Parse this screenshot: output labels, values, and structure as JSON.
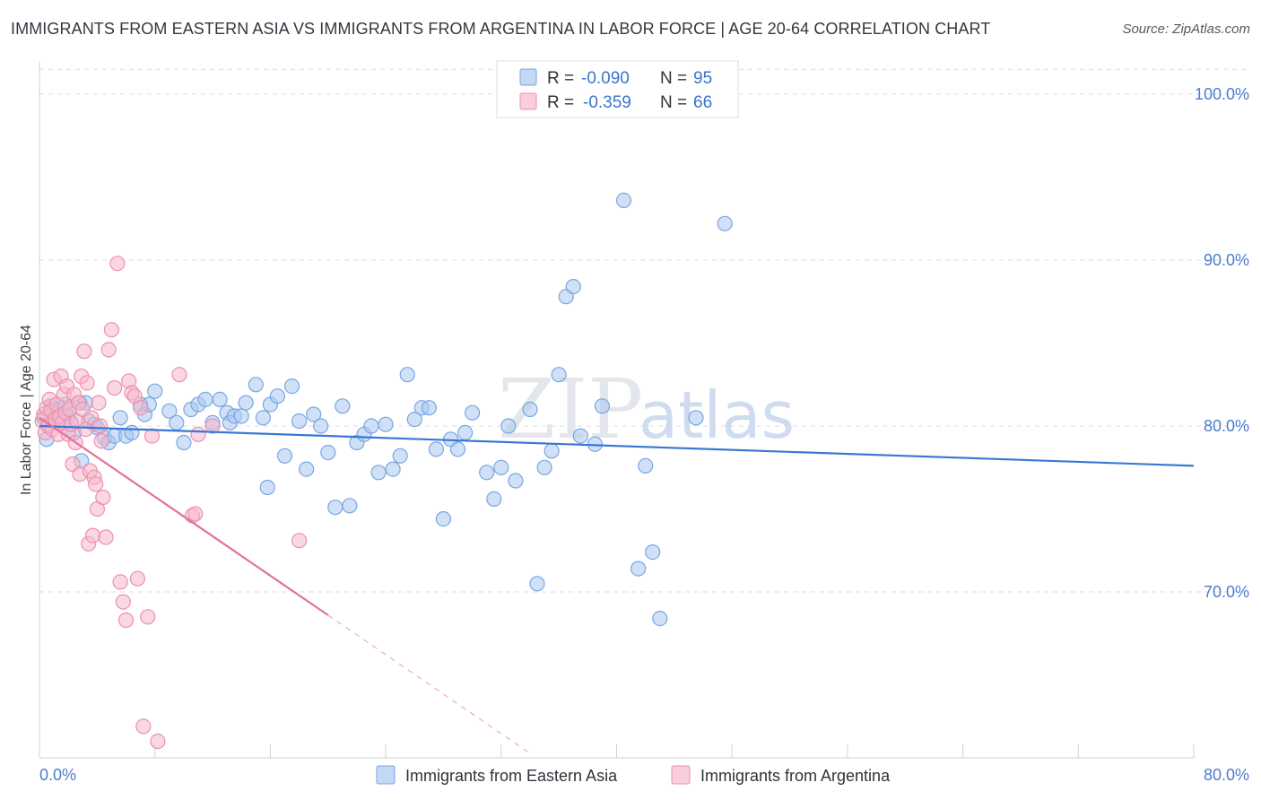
{
  "title": "IMMIGRANTS FROM EASTERN ASIA VS IMMIGRANTS FROM ARGENTINA IN LABOR FORCE | AGE 20-64 CORRELATION CHART",
  "source": "Source: ZipAtlas.com",
  "watermark": {
    "zip": "ZIP",
    "atlas": "atlas"
  },
  "colors": {
    "blue": "#a9c8f0",
    "blue_stroke": "#7aa6e0",
    "blue_line": "#3a78d4",
    "pink": "#f6b8cc",
    "pink_stroke": "#ee8fae",
    "pink_line": "#e3709b",
    "grid": "#d9dde2",
    "axis_text": "#4a7cd0"
  },
  "legend": {
    "rows": [
      {
        "r_label": "R =",
        "r_value": "-0.090",
        "n_label": "N =",
        "n_value": "95"
      },
      {
        "r_label": "R =",
        "r_value": "-0.359",
        "n_label": "N =",
        "n_value": "66"
      }
    ]
  },
  "chart_data": {
    "type": "scatter",
    "ylabel": "In Labor Force | Age 20-64",
    "xlabel": "",
    "xlim": [
      0,
      80
    ],
    "ylim": [
      60,
      102
    ],
    "x_tick_labels": [
      "0.0%",
      "80.0%"
    ],
    "y_ticks": [
      70,
      80,
      90,
      100
    ],
    "y_tick_labels": [
      "70.0%",
      "80.0%",
      "90.0%",
      "100.0%"
    ],
    "series": [
      {
        "name": "Immigrants from Eastern Asia",
        "r": -0.09,
        "n": 95,
        "trend": {
          "x": [
            0,
            80
          ],
          "y": [
            80.0,
            77.6
          ],
          "dash_from": 80
        },
        "points": [
          [
            0.3,
            80.5
          ],
          [
            0.5,
            79.2
          ],
          [
            0.6,
            80.1
          ],
          [
            0.8,
            81.2
          ],
          [
            1.0,
            80.9
          ],
          [
            1.2,
            81.0
          ],
          [
            1.4,
            80.4
          ],
          [
            1.6,
            80.7
          ],
          [
            1.8,
            81.3
          ],
          [
            2.0,
            80.6
          ],
          [
            2.2,
            80.2
          ],
          [
            2.4,
            79.6
          ],
          [
            2.8,
            81.4
          ],
          [
            2.9,
            77.9
          ],
          [
            3.2,
            81.4
          ],
          [
            3.4,
            80.3
          ],
          [
            3.8,
            80.1
          ],
          [
            4.0,
            79.9
          ],
          [
            4.5,
            79.3
          ],
          [
            4.8,
            79.0
          ],
          [
            5.2,
            79.4
          ],
          [
            5.6,
            80.5
          ],
          [
            6.0,
            79.4
          ],
          [
            6.4,
            79.6
          ],
          [
            7.0,
            81.3
          ],
          [
            7.3,
            80.7
          ],
          [
            7.6,
            81.3
          ],
          [
            8.0,
            82.1
          ],
          [
            9.0,
            80.9
          ],
          [
            9.5,
            80.2
          ],
          [
            10.0,
            79.0
          ],
          [
            10.5,
            81.0
          ],
          [
            11.0,
            81.3
          ],
          [
            11.5,
            81.6
          ],
          [
            12.0,
            80.2
          ],
          [
            12.5,
            81.6
          ],
          [
            13.0,
            80.8
          ],
          [
            13.2,
            80.2
          ],
          [
            13.5,
            80.6
          ],
          [
            14.0,
            80.6
          ],
          [
            14.3,
            81.4
          ],
          [
            15.0,
            82.5
          ],
          [
            15.5,
            80.5
          ],
          [
            15.8,
            76.3
          ],
          [
            16.0,
            81.3
          ],
          [
            16.5,
            81.8
          ],
          [
            17.0,
            78.2
          ],
          [
            17.5,
            82.4
          ],
          [
            18.0,
            80.3
          ],
          [
            18.5,
            77.4
          ],
          [
            19.0,
            80.7
          ],
          [
            19.5,
            80.0
          ],
          [
            20.0,
            78.4
          ],
          [
            20.5,
            75.1
          ],
          [
            21.0,
            81.2
          ],
          [
            21.5,
            75.2
          ],
          [
            22.0,
            79.0
          ],
          [
            22.5,
            79.5
          ],
          [
            23.0,
            80.0
          ],
          [
            23.5,
            77.2
          ],
          [
            24.0,
            80.1
          ],
          [
            24.5,
            77.4
          ],
          [
            25.0,
            78.2
          ],
          [
            25.5,
            83.1
          ],
          [
            26.0,
            80.4
          ],
          [
            26.5,
            81.1
          ],
          [
            27.0,
            81.1
          ],
          [
            27.5,
            78.6
          ],
          [
            28.0,
            74.4
          ],
          [
            28.5,
            79.2
          ],
          [
            29.0,
            78.6
          ],
          [
            29.5,
            79.6
          ],
          [
            30.0,
            80.8
          ],
          [
            31.0,
            77.2
          ],
          [
            31.5,
            75.6
          ],
          [
            32.0,
            77.5
          ],
          [
            32.5,
            80.0
          ],
          [
            33.0,
            76.7
          ],
          [
            34.0,
            81.0
          ],
          [
            34.5,
            70.5
          ],
          [
            35.0,
            77.5
          ],
          [
            35.5,
            78.5
          ],
          [
            36.0,
            83.1
          ],
          [
            36.5,
            87.8
          ],
          [
            37.0,
            88.4
          ],
          [
            37.5,
            79.4
          ],
          [
            38.5,
            78.9
          ],
          [
            39.0,
            81.2
          ],
          [
            40.5,
            93.6
          ],
          [
            41.5,
            71.4
          ],
          [
            42.0,
            77.6
          ],
          [
            42.5,
            72.4
          ],
          [
            43.0,
            68.4
          ],
          [
            45.5,
            80.5
          ],
          [
            47.5,
            92.2
          ]
        ]
      },
      {
        "name": "Immigrants from Argentina",
        "r": -0.359,
        "n": 66,
        "trend": {
          "x": [
            0,
            20
          ],
          "y": [
            80.5,
            68.6
          ],
          "dash_to": 34
        },
        "points": [
          [
            0.2,
            80.3
          ],
          [
            0.3,
            80.7
          ],
          [
            0.4,
            79.6
          ],
          [
            0.5,
            81.1
          ],
          [
            0.6,
            80.0
          ],
          [
            0.7,
            81.6
          ],
          [
            0.8,
            80.9
          ],
          [
            0.9,
            79.8
          ],
          [
            1.0,
            82.8
          ],
          [
            1.1,
            80.4
          ],
          [
            1.2,
            81.3
          ],
          [
            1.3,
            79.5
          ],
          [
            1.4,
            80.6
          ],
          [
            1.5,
            83.0
          ],
          [
            1.6,
            80.2
          ],
          [
            1.7,
            81.9
          ],
          [
            1.8,
            80.8
          ],
          [
            1.9,
            82.4
          ],
          [
            2.0,
            79.5
          ],
          [
            2.1,
            81.0
          ],
          [
            2.2,
            80.1
          ],
          [
            2.3,
            77.7
          ],
          [
            2.4,
            81.9
          ],
          [
            2.5,
            79.0
          ],
          [
            2.6,
            80.3
          ],
          [
            2.7,
            81.4
          ],
          [
            2.8,
            77.1
          ],
          [
            2.9,
            83.0
          ],
          [
            3.0,
            81.0
          ],
          [
            3.1,
            84.5
          ],
          [
            3.2,
            79.8
          ],
          [
            3.3,
            82.6
          ],
          [
            3.4,
            72.9
          ],
          [
            3.5,
            77.3
          ],
          [
            3.6,
            80.5
          ],
          [
            3.7,
            73.4
          ],
          [
            3.8,
            76.9
          ],
          [
            3.9,
            76.5
          ],
          [
            4.0,
            75.0
          ],
          [
            4.1,
            81.4
          ],
          [
            4.2,
            80.0
          ],
          [
            4.3,
            79.1
          ],
          [
            4.4,
            75.7
          ],
          [
            4.6,
            73.3
          ],
          [
            4.8,
            84.6
          ],
          [
            5.0,
            85.8
          ],
          [
            5.2,
            82.3
          ],
          [
            5.4,
            89.8
          ],
          [
            5.6,
            70.6
          ],
          [
            5.8,
            69.4
          ],
          [
            6.0,
            68.3
          ],
          [
            6.2,
            82.7
          ],
          [
            6.4,
            82.0
          ],
          [
            6.6,
            81.8
          ],
          [
            6.8,
            70.8
          ],
          [
            7.0,
            81.1
          ],
          [
            7.2,
            61.9
          ],
          [
            7.5,
            68.5
          ],
          [
            7.8,
            79.4
          ],
          [
            8.2,
            61.0
          ],
          [
            9.7,
            83.1
          ],
          [
            10.6,
            74.6
          ],
          [
            10.8,
            74.7
          ],
          [
            11.0,
            79.5
          ],
          [
            12.0,
            80.0
          ],
          [
            18.0,
            73.1
          ]
        ]
      }
    ]
  },
  "bottom_legend": [
    "Immigrants from Eastern Asia",
    "Immigrants from Argentina"
  ]
}
